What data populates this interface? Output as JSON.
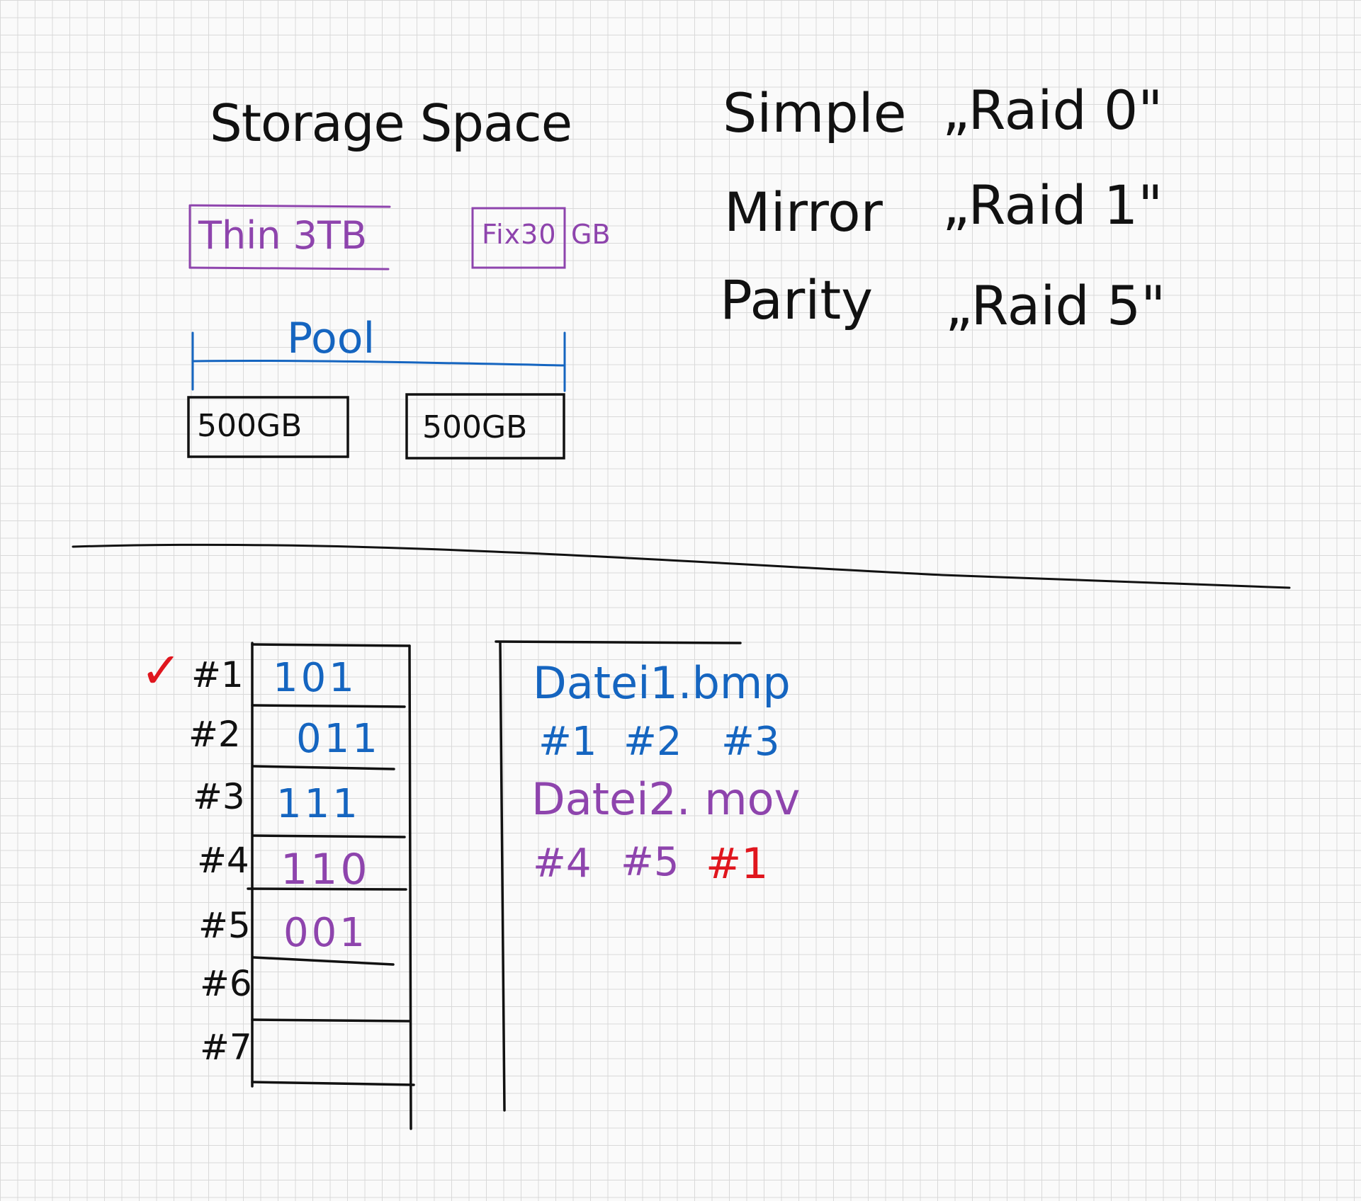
{
  "colors": {
    "black_ink": "#111111",
    "blue_ink": "#1565c0",
    "purple_ink": "#8e44ad",
    "red_ink": "#e0161e",
    "grid": "#d9d9d9",
    "paper": "#fafafa"
  },
  "top_left": {
    "title": "Storage Space",
    "thin_box": "Thin 3TB",
    "fix_box": "Fix30",
    "fix_unit": "GB",
    "pool_label": "Pool",
    "disks": [
      "500GB",
      "500GB"
    ]
  },
  "raid_levels": [
    {
      "name": "Simple",
      "raid": "„Raid 0\""
    },
    {
      "name": "Mirror",
      "raid": "„Raid 1\""
    },
    {
      "name": "Parity",
      "raid": "„Raid 5\""
    }
  ],
  "blocks": {
    "check_mark": "✓",
    "rows": [
      {
        "label": "#1",
        "value": "101"
      },
      {
        "label": "#2",
        "value": "011"
      },
      {
        "label": "#3",
        "value": "111"
      },
      {
        "label": "#4",
        "value": "110"
      },
      {
        "label": "#5",
        "value": "001"
      },
      {
        "label": "#6",
        "value": ""
      },
      {
        "label": "#7",
        "value": ""
      }
    ]
  },
  "files": [
    {
      "name": "Datei1.bmp",
      "blocks": [
        "#1",
        "#2",
        "#3"
      ],
      "highlight": []
    },
    {
      "name": "Datei2. mov",
      "blocks": [
        "#4",
        "#5",
        "#1"
      ],
      "highlight": [
        "#1"
      ]
    }
  ]
}
